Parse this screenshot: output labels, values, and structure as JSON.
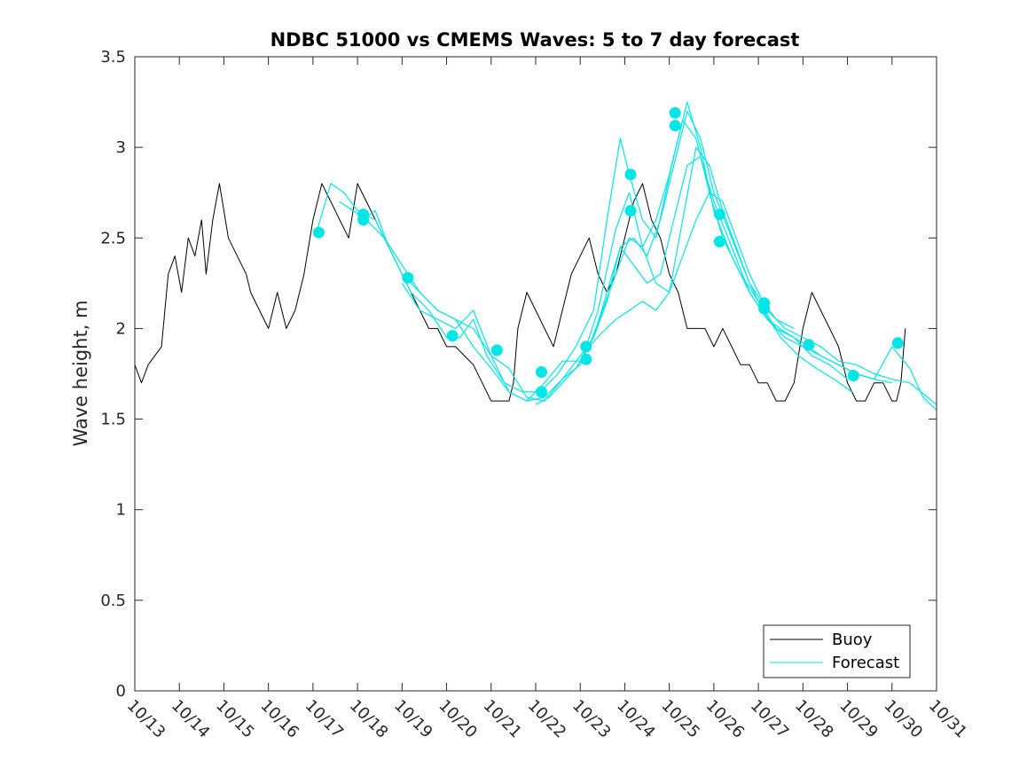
{
  "colors": {
    "buoy": "#000000",
    "forecast": "#00e6e6",
    "axis": "#262626"
  },
  "chart_data": {
    "type": "line",
    "title": "NDBC 51000 vs CMEMS Waves: 5 to 7 day forecast",
    "xlabel": "",
    "ylabel": "Wave height, m",
    "xlim": [
      0,
      18
    ],
    "ylim": [
      0,
      3.5
    ],
    "x_tick_labels": [
      "10/13",
      "10/14",
      "10/15",
      "10/16",
      "10/17",
      "10/18",
      "10/19",
      "10/20",
      "10/21",
      "10/22",
      "10/23",
      "10/24",
      "10/25",
      "10/26",
      "10/27",
      "10/28",
      "10/29",
      "10/30",
      "10/31"
    ],
    "y_ticks": [
      0,
      0.5,
      1,
      1.5,
      2,
      2.5,
      3,
      3.5
    ],
    "y_tick_labels": [
      "0",
      "0.5",
      "1",
      "1.5",
      "2",
      "2.5",
      "3",
      "3.5"
    ],
    "grid": false,
    "legend_position": "bottom-right",
    "legend": {
      "buoy": "Buoy",
      "forecast": "Forecast"
    },
    "buoy": {
      "name": "Buoy",
      "x": [
        0,
        0.15,
        0.3,
        0.45,
        0.6,
        0.75,
        0.9,
        1.05,
        1.2,
        1.35,
        1.5,
        1.6,
        1.75,
        1.9,
        2.1,
        2.3,
        2.5,
        2.6,
        2.8,
        3.0,
        3.2,
        3.4,
        3.6,
        3.8,
        4.0,
        4.2,
        4.4,
        4.6,
        4.8,
        5.0,
        5.2,
        5.4,
        5.6,
        5.8,
        6.0,
        6.2,
        6.4,
        6.6,
        6.8,
        7.0,
        7.2,
        7.4,
        7.6,
        7.8,
        8.0,
        8.2,
        8.4,
        8.5,
        8.6,
        8.8,
        9.0,
        9.2,
        9.4,
        9.6,
        9.8,
        10.0,
        10.2,
        10.4,
        10.6,
        10.8,
        11.0,
        11.2,
        11.4,
        11.6,
        11.8,
        12.0,
        12.2,
        12.4,
        12.6,
        12.8,
        13.0,
        13.2,
        13.4,
        13.6,
        13.8,
        14.0,
        14.2,
        14.4,
        14.6,
        14.8,
        15.0,
        15.2,
        15.4,
        15.6,
        15.8,
        16.0,
        16.2,
        16.4,
        16.6,
        16.8,
        17.0,
        17.1,
        17.2,
        17.3
      ],
      "values": [
        1.8,
        1.7,
        1.8,
        1.85,
        1.9,
        2.3,
        2.4,
        2.2,
        2.5,
        2.4,
        2.6,
        2.3,
        2.6,
        2.8,
        2.5,
        2.4,
        2.3,
        2.2,
        2.1,
        2.0,
        2.2,
        2.0,
        2.1,
        2.3,
        2.6,
        2.8,
        2.7,
        2.6,
        2.5,
        2.8,
        2.7,
        2.6,
        2.5,
        2.4,
        2.3,
        2.2,
        2.1,
        2.0,
        2.0,
        1.9,
        1.9,
        1.85,
        1.8,
        1.7,
        1.6,
        1.6,
        1.6,
        1.7,
        2.0,
        2.2,
        2.1,
        2.0,
        1.9,
        2.1,
        2.3,
        2.4,
        2.5,
        2.3,
        2.2,
        2.3,
        2.5,
        2.7,
        2.8,
        2.6,
        2.5,
        2.3,
        2.2,
        2.0,
        2.0,
        2.0,
        1.9,
        2.0,
        1.9,
        1.8,
        1.8,
        1.7,
        1.7,
        1.6,
        1.6,
        1.7,
        2.0,
        2.2,
        2.1,
        2.0,
        1.9,
        1.7,
        1.6,
        1.6,
        1.7,
        1.7,
        1.6,
        1.6,
        1.7,
        2.0
      ]
    },
    "forecast_series": [
      {
        "x": [
          4.1,
          4.4,
          4.7,
          5.0,
          5.4,
          5.8,
          6.2,
          6.6,
          7.0,
          7.3,
          7.6,
          7.9,
          8.3,
          8.7,
          9.1,
          9.5,
          9.9,
          10.3,
          10.6,
          10.9,
          11.1,
          11.4,
          11.7,
          12.1,
          12.4,
          12.7,
          13.0,
          13.4,
          13.8,
          14.2,
          14.6,
          15.0,
          15.4,
          15.8,
          16.2,
          16.6,
          17.0,
          17.4,
          17.7,
          18.0
        ],
        "values": [
          2.55,
          2.8,
          2.75,
          2.65,
          2.6,
          2.4,
          2.2,
          2.1,
          1.95,
          1.95,
          2.05,
          1.85,
          1.7,
          1.65,
          1.65,
          1.75,
          1.9,
          2.1,
          2.6,
          3.05,
          2.85,
          2.6,
          2.5,
          2.95,
          3.25,
          3.0,
          2.65,
          2.4,
          2.2,
          2.05,
          1.95,
          1.9,
          1.85,
          1.8,
          1.75,
          1.72,
          1.9,
          1.78,
          1.62,
          1.55
        ]
      },
      {
        "x": [
          4.6,
          4.9,
          5.2,
          5.6,
          6.0,
          6.4,
          6.8,
          7.2,
          7.6,
          8.0,
          8.4,
          8.8,
          9.2,
          9.6,
          10.0,
          10.3,
          10.6,
          10.9,
          11.2,
          11.5,
          11.8,
          12.1,
          12.4,
          12.7,
          13.0,
          13.4,
          13.8,
          14.2,
          14.6,
          15.0,
          15.4,
          15.8,
          16.2,
          16.6,
          17.0,
          17.4,
          17.8,
          18.0
        ],
        "values": [
          2.7,
          2.65,
          2.6,
          2.5,
          2.35,
          2.2,
          2.1,
          2.05,
          1.9,
          1.78,
          1.65,
          1.6,
          1.62,
          1.72,
          1.85,
          1.95,
          2.15,
          2.45,
          2.5,
          2.4,
          2.6,
          2.9,
          3.2,
          3.05,
          2.75,
          2.5,
          2.25,
          2.1,
          2.0,
          1.95,
          1.9,
          1.82,
          1.8,
          1.75,
          1.72,
          1.7,
          1.62,
          1.58
        ]
      },
      {
        "x": [
          5.1,
          5.4,
          5.7,
          6.0,
          6.4,
          6.8,
          7.2,
          7.6,
          8.0,
          8.4,
          8.8,
          9.2,
          9.6,
          10.0,
          10.3,
          10.6,
          10.9,
          11.2,
          11.5,
          11.8,
          12.1,
          12.4,
          12.7,
          13.0,
          13.4,
          13.8,
          14.2,
          14.6,
          15.0,
          15.4,
          15.8,
          16.2,
          16.6,
          17.0
        ],
        "values": [
          2.6,
          2.65,
          2.45,
          2.3,
          2.2,
          2.1,
          2.05,
          2.0,
          1.85,
          1.65,
          1.6,
          1.7,
          1.82,
          1.82,
          1.95,
          2.2,
          2.45,
          2.35,
          2.25,
          2.3,
          2.6,
          2.9,
          2.95,
          2.7,
          2.45,
          2.2,
          2.05,
          1.98,
          1.92,
          1.85,
          1.8,
          1.75,
          1.72,
          1.7
        ]
      },
      {
        "x": [
          6.0,
          6.4,
          6.8,
          7.2,
          7.6,
          8.0,
          8.4,
          8.8,
          9.2,
          9.6,
          10.0,
          10.4,
          10.8,
          11.1,
          11.4,
          11.7,
          12.0,
          12.3,
          12.6,
          12.9,
          13.2,
          13.6,
          14.0,
          14.4,
          14.8,
          15.2,
          15.6,
          16.0
        ],
        "values": [
          2.25,
          2.1,
          2.05,
          2.0,
          2.1,
          1.85,
          1.78,
          1.62,
          1.6,
          1.72,
          1.8,
          2.1,
          2.55,
          2.75,
          2.45,
          2.6,
          2.85,
          3.15,
          3.05,
          2.75,
          2.5,
          2.3,
          2.15,
          2.0,
          1.95,
          1.85,
          1.8,
          1.72
        ]
      },
      {
        "x": [
          9.0,
          9.3,
          9.6,
          9.9,
          10.2,
          10.5,
          10.8,
          11.1,
          11.4,
          11.7,
          12.0,
          12.3,
          12.6,
          12.9,
          13.2,
          13.5,
          13.8,
          14.1,
          14.5,
          14.9,
          15.3,
          15.7,
          16.1
        ],
        "values": [
          1.58,
          1.62,
          1.7,
          1.78,
          1.9,
          2.1,
          2.3,
          2.5,
          2.45,
          2.25,
          2.2,
          2.6,
          3.0,
          2.9,
          2.65,
          2.45,
          2.25,
          2.1,
          1.95,
          1.85,
          1.78,
          1.72,
          1.65
        ]
      },
      {
        "x": [
          10.2,
          10.5,
          10.8,
          11.1,
          11.4,
          11.7,
          12.0,
          12.3,
          12.6,
          12.9,
          13.2,
          13.5,
          13.8,
          14.1,
          14.4,
          14.8
        ],
        "values": [
          1.9,
          1.98,
          2.05,
          2.1,
          2.15,
          2.1,
          2.2,
          2.4,
          2.6,
          2.75,
          2.7,
          2.5,
          2.3,
          2.15,
          2.05,
          2.0
        ]
      }
    ],
    "forecast_points": {
      "x": [
        4.13,
        5.13,
        5.13,
        6.13,
        7.13,
        8.13,
        9.13,
        9.13,
        10.13,
        10.13,
        11.13,
        11.13,
        12.13,
        12.13,
        13.13,
        13.13,
        14.13,
        14.13,
        15.13,
        16.13,
        17.13
      ],
      "values": [
        2.53,
        2.6,
        2.63,
        2.28,
        1.96,
        1.88,
        1.76,
        1.65,
        1.9,
        1.83,
        2.85,
        2.65,
        3.19,
        3.12,
        2.63,
        2.48,
        2.14,
        2.11,
        1.91,
        1.74,
        1.92
      ]
    }
  }
}
